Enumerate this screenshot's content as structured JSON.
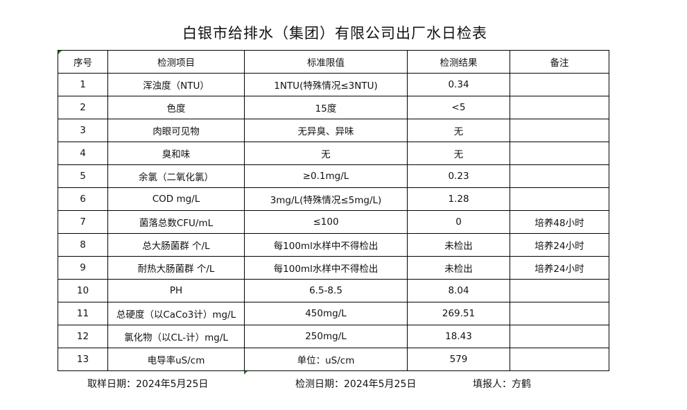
{
  "title": "白银市给排水（集团）有限公司出厂水日检表",
  "table": {
    "headers": [
      "序号",
      "检测项目",
      "标准限值",
      "检测结果",
      "备注"
    ],
    "rows": [
      [
        "1",
        "浑浊度（NTU）",
        "1NTU(特殊情况≤3NTU)",
        "0.34",
        ""
      ],
      [
        "2",
        "色度",
        "15度",
        "<5",
        ""
      ],
      [
        "3",
        "肉眼可见物",
        "无异臭、异味",
        "无",
        ""
      ],
      [
        "4",
        "臭和味",
        "无",
        "无",
        ""
      ],
      [
        "5",
        "余氯（二氧化氯）",
        "≥0.1mg/L",
        "0.23",
        ""
      ],
      [
        "6",
        "COD         mg/L",
        "3mg/L(特殊情况≤5mg/L)",
        "1.28",
        ""
      ],
      [
        "7",
        "菌落总数CFU/mL",
        "≤100",
        "0",
        "培养48小时"
      ],
      [
        "8",
        "总大肠菌群 个/L",
        "每100ml水样中不得检出",
        "未检出",
        "培养24小时"
      ],
      [
        "9",
        "耐热大肠菌群 个/L",
        "每100ml水样中不得检出",
        "未检出",
        "培养24小时"
      ],
      [
        "10",
        "PH",
        "6.5-8.5",
        "8.04",
        ""
      ],
      [
        "11",
        "总硬度（以CaCo3计）mg/L",
        "450mg/L",
        "269.51",
        ""
      ],
      [
        "12",
        "氯化物（以CL-计）mg/L",
        "250mg/L",
        "18.43",
        ""
      ],
      [
        "13",
        "电导率uS/cm",
        "单位：uS/cm",
        "579",
        ""
      ]
    ]
  },
  "footer": {
    "sampling_date": "取样日期：2024年5月25日",
    "test_date": "检测日期：2024年5月25日",
    "reporter": "填报人：方鹤"
  }
}
